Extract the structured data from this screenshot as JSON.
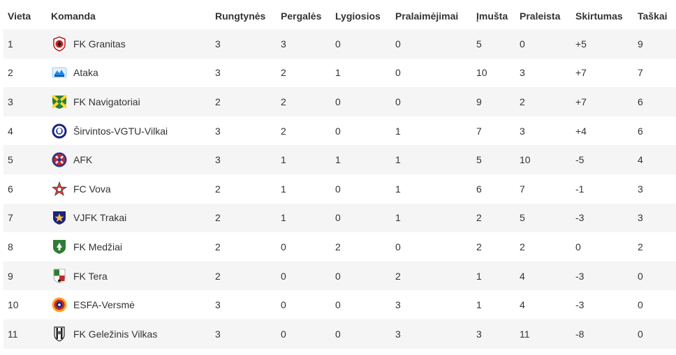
{
  "table": {
    "headers": {
      "place": "Vieta",
      "team": "Komanda",
      "played": "Rungtynės",
      "won": "Pergalės",
      "drawn": "Lygiosios",
      "lost": "Pralaimėjimai",
      "scored": "Įmušta",
      "conceded": "Praleista",
      "diff": "Skirtumas",
      "points": "Taškai"
    },
    "rows": [
      {
        "place": "1",
        "team": "FK Granitas",
        "logo": "granitas-crest-icon",
        "played": "3",
        "won": "3",
        "drawn": "0",
        "lost": "0",
        "scored": "5",
        "conceded": "0",
        "diff": "+5",
        "points": "9"
      },
      {
        "place": "2",
        "team": "Ataka",
        "logo": "ataka-crest-icon",
        "played": "3",
        "won": "2",
        "drawn": "1",
        "lost": "0",
        "scored": "10",
        "conceded": "3",
        "diff": "+7",
        "points": "7"
      },
      {
        "place": "3",
        "team": "FK Navigatoriai",
        "logo": "navigatoriai-crest-icon",
        "played": "2",
        "won": "2",
        "drawn": "0",
        "lost": "0",
        "scored": "9",
        "conceded": "2",
        "diff": "+7",
        "points": "6"
      },
      {
        "place": "4",
        "team": "Širvintos-VGTU-Vilkai",
        "logo": "sirvintos-crest-icon",
        "played": "3",
        "won": "2",
        "drawn": "0",
        "lost": "1",
        "scored": "7",
        "conceded": "3",
        "diff": "+4",
        "points": "6"
      },
      {
        "place": "5",
        "team": "AFK",
        "logo": "afk-crest-icon",
        "played": "3",
        "won": "1",
        "drawn": "1",
        "lost": "1",
        "scored": "5",
        "conceded": "10",
        "diff": "-5",
        "points": "4"
      },
      {
        "place": "6",
        "team": "FC Vova",
        "logo": "vova-crest-icon",
        "played": "2",
        "won": "1",
        "drawn": "0",
        "lost": "1",
        "scored": "6",
        "conceded": "7",
        "diff": "-1",
        "points": "3"
      },
      {
        "place": "7",
        "team": "VJFK Trakai",
        "logo": "trakai-crest-icon",
        "played": "2",
        "won": "1",
        "drawn": "0",
        "lost": "1",
        "scored": "2",
        "conceded": "5",
        "diff": "-3",
        "points": "3"
      },
      {
        "place": "8",
        "team": "FK Medžiai",
        "logo": "medziai-crest-icon",
        "played": "2",
        "won": "0",
        "drawn": "2",
        "lost": "0",
        "scored": "2",
        "conceded": "2",
        "diff": "0",
        "points": "2"
      },
      {
        "place": "9",
        "team": "FK Tera",
        "logo": "tera-crest-icon",
        "played": "2",
        "won": "0",
        "drawn": "0",
        "lost": "2",
        "scored": "1",
        "conceded": "4",
        "diff": "-3",
        "points": "0"
      },
      {
        "place": "10",
        "team": "ESFA-Versmė",
        "logo": "esfa-crest-icon",
        "played": "3",
        "won": "0",
        "drawn": "0",
        "lost": "3",
        "scored": "1",
        "conceded": "4",
        "diff": "-3",
        "points": "0"
      },
      {
        "place": "11",
        "team": "FK Geležinis Vilkas",
        "logo": "gelezinis-vilkas-crest-icon",
        "played": "3",
        "won": "0",
        "drawn": "0",
        "lost": "3",
        "scored": "3",
        "conceded": "11",
        "diff": "-8",
        "points": "0"
      }
    ]
  }
}
